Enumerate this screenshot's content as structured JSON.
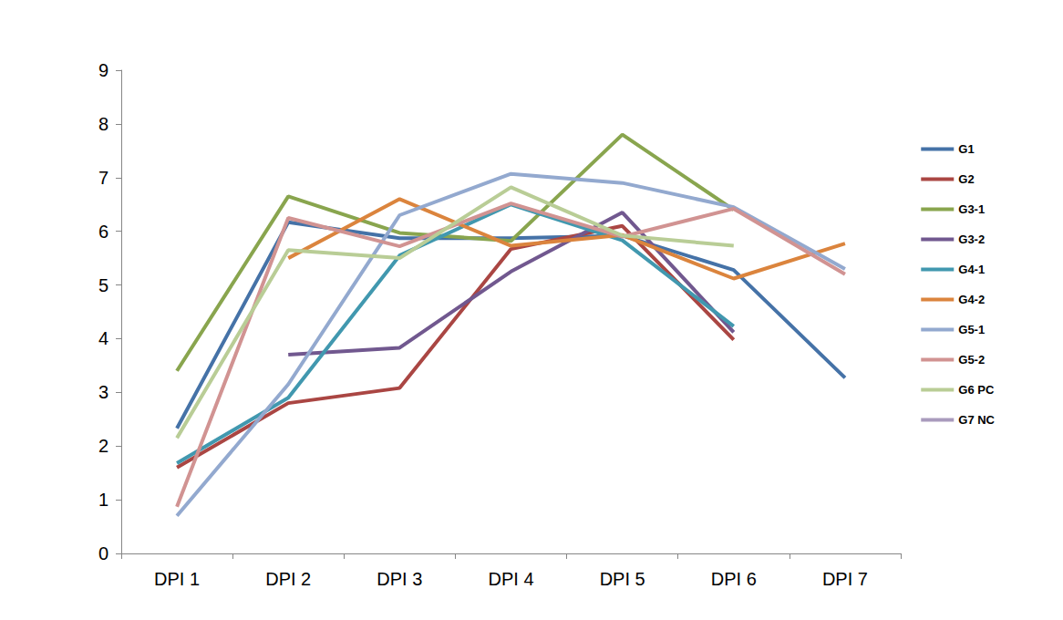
{
  "chart_data": {
    "type": "line",
    "categories": [
      "DPI 1",
      "DPI 2",
      "DPI 3",
      "DPI 4",
      "DPI 5",
      "DPI 6",
      "DPI 7"
    ],
    "series": [
      {
        "name": "G1",
        "color": "#4572a7",
        "values": [
          2.33,
          6.17,
          5.87,
          5.87,
          5.92,
          5.28,
          3.27
        ]
      },
      {
        "name": "G2",
        "color": "#aa4643",
        "values": [
          1.6,
          2.8,
          3.08,
          5.67,
          6.1,
          3.98,
          null
        ]
      },
      {
        "name": "G3-1",
        "color": "#89a54e",
        "values": [
          3.4,
          6.65,
          5.97,
          5.82,
          7.8,
          6.4,
          null
        ]
      },
      {
        "name": "G3-2",
        "color": "#71588f",
        "values": [
          null,
          3.7,
          3.83,
          5.25,
          6.35,
          4.12,
          null
        ]
      },
      {
        "name": "G4-1",
        "color": "#4198af",
        "values": [
          1.68,
          2.9,
          5.55,
          6.5,
          5.83,
          4.23,
          null
        ]
      },
      {
        "name": "G4-2",
        "color": "#db843d",
        "values": [
          null,
          5.5,
          6.6,
          5.73,
          5.93,
          5.12,
          5.77
        ]
      },
      {
        "name": "G5-1",
        "color": "#93a9cf",
        "values": [
          0.7,
          3.15,
          6.3,
          7.07,
          6.9,
          6.45,
          5.3
        ]
      },
      {
        "name": "G5-2",
        "color": "#d19392",
        "values": [
          0.87,
          6.25,
          5.72,
          6.52,
          5.9,
          6.42,
          5.2
        ]
      },
      {
        "name": "G6 PC",
        "color": "#b9cd96",
        "values": [
          2.15,
          5.65,
          5.5,
          6.82,
          5.92,
          5.73,
          null
        ]
      },
      {
        "name": "G7 NC",
        "color": "#a99bbd",
        "values": [
          null,
          null,
          null,
          null,
          null,
          null,
          null
        ]
      }
    ],
    "ylim": [
      0,
      9
    ],
    "yticks": [
      0,
      1,
      2,
      3,
      4,
      5,
      6,
      7,
      8,
      9
    ],
    "grid": false,
    "legend": "right"
  }
}
